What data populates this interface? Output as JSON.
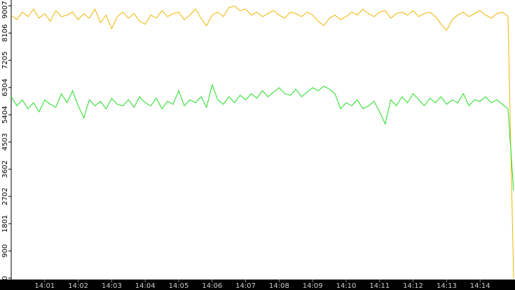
{
  "chart_data": {
    "type": "line",
    "categories": [
      null,
      null,
      null,
      null,
      null,
      null,
      "14:01",
      null,
      null,
      null,
      null,
      null,
      "14:02",
      null,
      null,
      null,
      null,
      null,
      "14:03",
      null,
      null,
      null,
      null,
      null,
      "14:04",
      null,
      null,
      null,
      null,
      null,
      "14:05",
      null,
      null,
      null,
      null,
      null,
      "14:06",
      null,
      null,
      null,
      null,
      null,
      "14:07",
      null,
      null,
      null,
      null,
      null,
      "14:08",
      null,
      null,
      null,
      null,
      null,
      "14:09",
      null,
      null,
      null,
      null,
      null,
      "14:10",
      null,
      null,
      null,
      null,
      null,
      "14:11",
      null,
      null,
      null,
      null,
      null,
      "14:12",
      null,
      null,
      null,
      null,
      null,
      "14:13",
      null,
      null,
      null,
      null,
      null,
      "14:14",
      null,
      null,
      null,
      null,
      null,
      null
    ],
    "series": [
      {
        "color": "#f0b400",
        "values": [
          8700,
          8550,
          8800,
          8650,
          8900,
          8600,
          8750,
          8500,
          8850,
          8650,
          8700,
          8800,
          8550,
          8750,
          8600,
          8900,
          8450,
          8700,
          8250,
          8650,
          8800,
          8600,
          8750,
          8500,
          8400,
          8700,
          8600,
          8850,
          8650,
          8750,
          8800,
          8550,
          8700,
          8900,
          8600,
          8350,
          8700,
          8800,
          8650,
          8950,
          9000,
          8850,
          8900,
          8700,
          8800,
          8650,
          8750,
          8850,
          8700,
          8600,
          8800,
          8750,
          8650,
          8800,
          8700,
          8500,
          8350,
          8600,
          8700,
          8550,
          8650,
          8800,
          8700,
          8900,
          8750,
          8650,
          8800,
          8850,
          8600,
          8750,
          8800,
          8700,
          8850,
          8650,
          8750,
          8800,
          8650,
          8400,
          8200,
          8550,
          8700,
          8800,
          8650,
          8750,
          8850,
          8700,
          8600,
          8750,
          8800,
          8650,
          0
        ]
      },
      {
        "color": "#22dd22",
        "values": [
          6000,
          5700,
          5900,
          5600,
          5800,
          5500,
          5900,
          5750,
          5650,
          6100,
          5800,
          6200,
          5700,
          5300,
          5900,
          5700,
          5850,
          5600,
          5950,
          5750,
          5700,
          5900,
          5650,
          6000,
          5800,
          5700,
          5950,
          5600,
          5850,
          5750,
          6200,
          5700,
          5900,
          5800,
          6000,
          5650,
          6400,
          5900,
          5750,
          6000,
          5800,
          6050,
          5900,
          6100,
          5950,
          6200,
          6000,
          6150,
          6300,
          6100,
          6050,
          6250,
          6000,
          6150,
          6300,
          6200,
          6350,
          6250,
          6100,
          5600,
          5800,
          5700,
          5900,
          5600,
          5700,
          5850,
          5500,
          5100,
          5900,
          5700,
          6000,
          5800,
          6100,
          5900,
          5700,
          5950,
          5800,
          6000,
          5750,
          5900,
          5800,
          6100,
          5700,
          5900,
          5850,
          6000,
          5800,
          5900,
          5750,
          5600,
          2900
        ]
      }
    ],
    "ylim": [
      0,
      9200
    ],
    "yticks": [
      0,
      900,
      1801,
      2702,
      3602,
      4503,
      5404,
      6304,
      7205,
      8106,
      9007
    ]
  }
}
